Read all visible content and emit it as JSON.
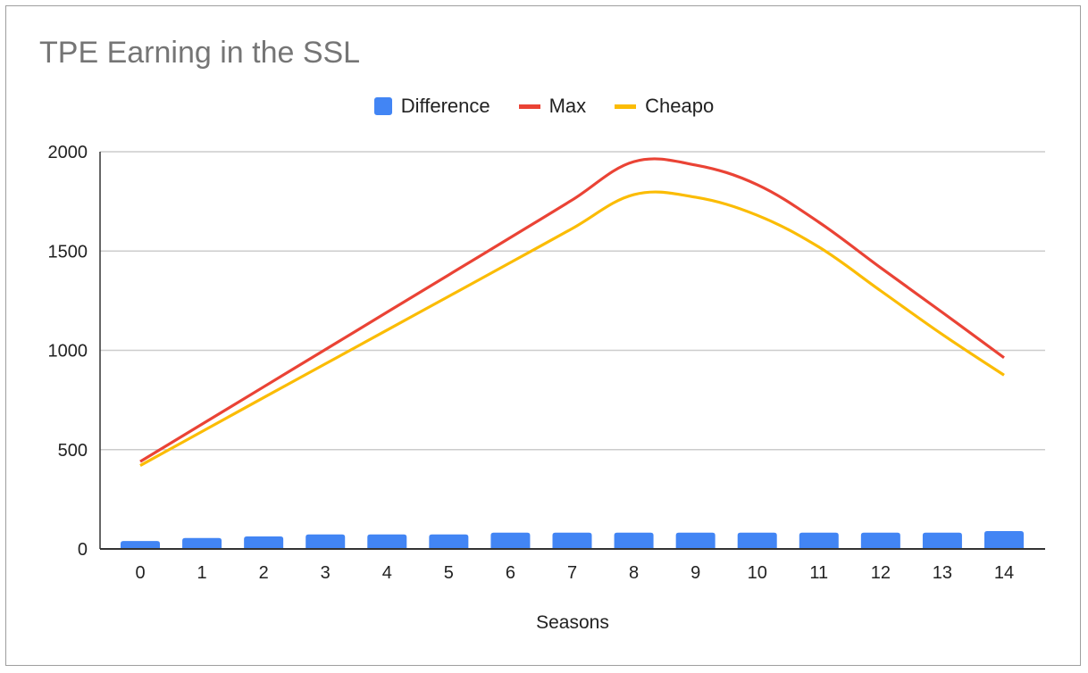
{
  "chart_data": {
    "type": "bar+line",
    "title": "TPE Earning in the SSL",
    "xlabel": "Seasons",
    "ylabel": "",
    "categories": [
      "0",
      "1",
      "2",
      "3",
      "4",
      "5",
      "6",
      "7",
      "8",
      "9",
      "10",
      "11",
      "12",
      "13",
      "14"
    ],
    "ylim": [
      0,
      2000
    ],
    "yticks": [
      "0",
      "500",
      "1000",
      "1500",
      "2000"
    ],
    "grid": true,
    "legend_position": "top",
    "series": [
      {
        "name": "Difference",
        "type": "bar",
        "color": "#4285f4",
        "values": [
          40,
          55,
          63,
          73,
          73,
          73,
          82,
          82,
          82,
          82,
          82,
          82,
          82,
          82,
          90
        ]
      },
      {
        "name": "Max",
        "type": "line",
        "color": "#ea4335",
        "values": [
          440,
          628,
          816,
          1004,
          1192,
          1380,
          1568,
          1757,
          1950,
          1933,
          1834,
          1645,
          1416,
          1191,
          963
        ]
      },
      {
        "name": "Cheapo",
        "type": "line",
        "color": "#fbbc04",
        "values": [
          420,
          591,
          762,
          932,
          1102,
          1272,
          1442,
          1613,
          1784,
          1771,
          1680,
          1520,
          1300,
          1080,
          875
        ]
      }
    ]
  }
}
